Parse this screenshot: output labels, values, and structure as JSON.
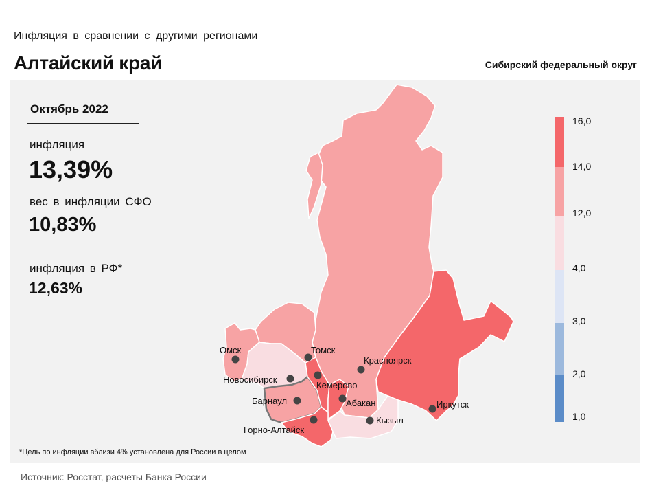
{
  "header": {
    "subtitle": "Инфляция  в сравнении  с другими  регионами",
    "title": "Алтайский край",
    "district": "Сибирский федеральный округ"
  },
  "stats": {
    "period": "Октябрь 2022",
    "inflation_label": "инфляция",
    "inflation_value": "13,39%",
    "weight_label": "вес в инфляции  СФО",
    "weight_value": "10,83%",
    "rf_label": "инфляция  в РФ*",
    "rf_value": "12,63%"
  },
  "legend": {
    "ticks": [
      "16,0",
      "14,0",
      "12,0",
      "4,0",
      "3,0",
      "2,0",
      "1,0"
    ],
    "colors": {
      "band_14_16": "#f4676a",
      "band_12_14": "#f7a3a4",
      "band_4_12": "#f9dde1",
      "band_3_4": "#dde5f5",
      "band_2_3": "#9cb9dd",
      "band_1_2": "#5b8cc8"
    }
  },
  "regions": [
    {
      "name": "Красноярск",
      "band": "12-14"
    },
    {
      "name": "Иркутск",
      "band": "14-16"
    },
    {
      "name": "Томск",
      "band": "12-14"
    },
    {
      "name": "Омск",
      "band": "12-14"
    },
    {
      "name": "Новосибирск",
      "band": "4-12"
    },
    {
      "name": "Барнаул",
      "band": "12-14"
    },
    {
      "name": "Кемерово",
      "band": "14-16"
    },
    {
      "name": "Абакан",
      "band": "14-16"
    },
    {
      "name": "Кызыл",
      "band": "4-12"
    },
    {
      "name": "Горно-Алтайск",
      "band": "14-16"
    }
  ],
  "footnote": "*Цель по инфляции вблизи 4% установлена для России в целом",
  "source": "Источник: Росстат, расчеты Банка России"
}
